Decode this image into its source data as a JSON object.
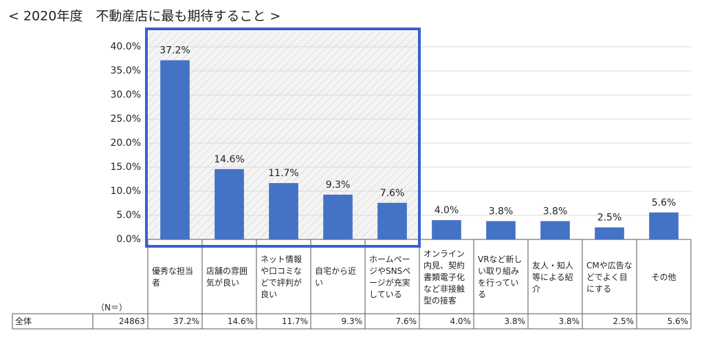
{
  "chart_data": {
    "type": "bar",
    "title": "< 2020年度　不動産店に最も期待すること >",
    "categories": [
      "優秀な担当者",
      "店舗の雰囲気が良い",
      "ネット情報や口コミなどで評判が良い",
      "自宅から近い",
      "ホームページやSNSページが充実している",
      "オンライン内見、契約書類電子化など非接触型の接客",
      "VRなど新しい取り組みを行っている",
      "友人・知人等による紹介",
      "CMや広告などでよく目にする",
      "その他"
    ],
    "values": [
      37.2,
      14.6,
      11.7,
      9.3,
      7.6,
      4.0,
      3.8,
      3.8,
      2.5,
      5.6
    ],
    "value_labels": [
      "37.2%",
      "14.6%",
      "11.7%",
      "9.3%",
      "7.6%",
      "4.0%",
      "3.8%",
      "3.8%",
      "2.5%",
      "5.6%"
    ],
    "color": "#4472c4",
    "ylim": [
      0,
      40
    ],
    "yticks": [
      {
        "value": 0,
        "label": "0.0%"
      },
      {
        "value": 5,
        "label": "5.0%"
      },
      {
        "value": 10,
        "label": "10.0%"
      },
      {
        "value": 15,
        "label": "15.0%"
      },
      {
        "value": 20,
        "label": "20.0%"
      },
      {
        "value": 25,
        "label": "25.0%"
      },
      {
        "value": 30,
        "label": "30.0%"
      },
      {
        "value": 35,
        "label": "35.0%"
      },
      {
        "value": 40,
        "label": "40.0%"
      }
    ],
    "grid": true,
    "table": {
      "n_header": "（N＝）",
      "row_label": "全体",
      "n": 24863
    }
  }
}
